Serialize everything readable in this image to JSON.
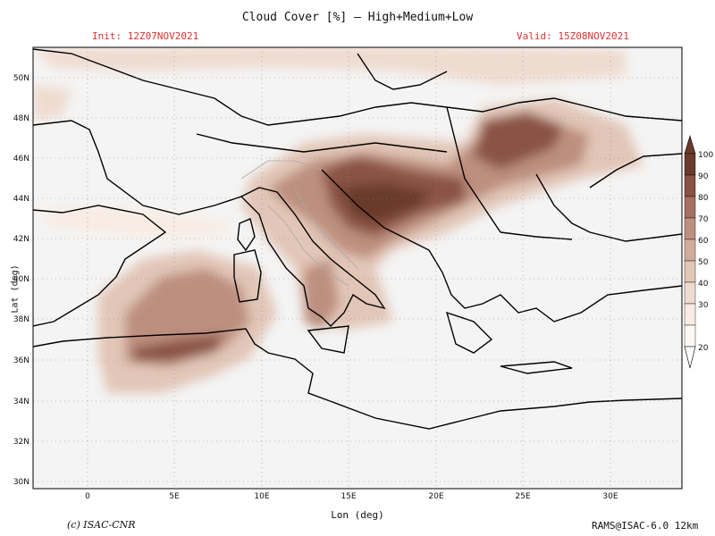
{
  "header": {
    "title": "Cloud Cover [%] — High+Medium+Low",
    "init": "Init: 12Z07NOV2021",
    "valid": "Valid: 15Z08NOV2021"
  },
  "footer": {
    "copyright": "(c) ISAC-CNR",
    "model": "RAMS@ISAC-6.0 12km"
  },
  "axes": {
    "xlabel": "Lon (deg)",
    "ylabel": "Lat (deg)",
    "x_ticks": [
      "0",
      "5E",
      "10E",
      "15E",
      "20E",
      "25E",
      "30E"
    ],
    "y_ticks": [
      "50N",
      "48N",
      "46N",
      "44N",
      "42N",
      "40N",
      "38N",
      "36N",
      "34N",
      "32N",
      "30N"
    ]
  },
  "colorbar": {
    "levels": [
      "100",
      "90",
      "80",
      "70",
      "60",
      "50",
      "40",
      "30",
      "20"
    ],
    "colors": [
      "#6b3a2c",
      "#8a5244",
      "#a4705f",
      "#bd8f7f",
      "#d2ac9c",
      "#e2c6b7",
      "#efdcd0",
      "#f8ece4",
      "#fdf8f4"
    ]
  },
  "colors": {
    "background": "#f4f4f4",
    "coast": "#000000",
    "grid": "#888888",
    "accent": "#e03030"
  }
}
